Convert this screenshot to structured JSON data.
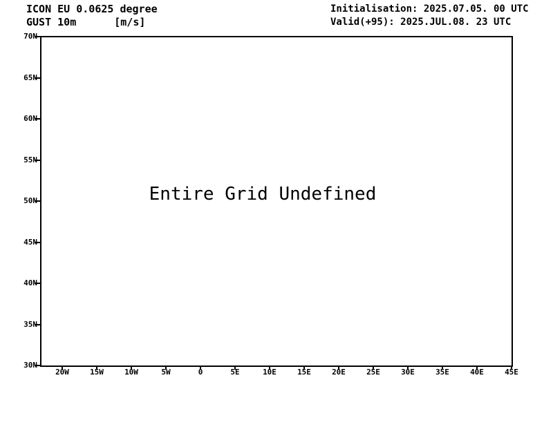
{
  "colors": {
    "foreground": "#000000",
    "background": "#ffffff"
  },
  "header": {
    "model": "ICON EU 0.0625 degree",
    "parameter": "GUST 10m",
    "units": "[m/s]",
    "initialisation": "Initialisation: 2025.07.05. 00 UTC",
    "valid": "Valid(+95): 2025.JUL.08. 23 UTC"
  },
  "plot": {
    "message": "Entire Grid Undefined"
  },
  "chart_data": {
    "type": "heatmap",
    "title": "ICON EU 0.0625 degree GUST 10m [m/s]",
    "subtitle": "Initialisation: 2025.07.05. 00 UTC, Valid(+95): 2025.JUL.08. 23 UTC",
    "x_ticks": [
      "20W",
      "15W",
      "10W",
      "5W",
      "0",
      "5E",
      "10E",
      "15E",
      "20E",
      "25E",
      "30E",
      "35E",
      "40E",
      "45E"
    ],
    "y_ticks": [
      "70N",
      "65N",
      "60N",
      "55N",
      "50N",
      "45N",
      "40N",
      "35N",
      "30N"
    ],
    "x_range_deg": [
      -23.2,
      45
    ],
    "y_range_deg": [
      30,
      70
    ],
    "values": [],
    "annotation": "Entire Grid Undefined",
    "grid": false,
    "legend": false
  }
}
